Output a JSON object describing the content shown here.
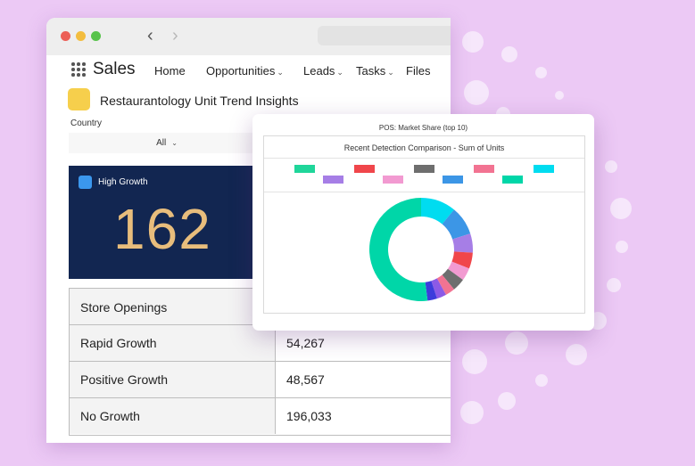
{
  "app": {
    "name": "Sales",
    "nav": [
      {
        "label": "Home",
        "dropdown": false
      },
      {
        "label": "Opportunities",
        "dropdown": true
      },
      {
        "label": "Leads",
        "dropdown": true
      },
      {
        "label": "Tasks",
        "dropdown": true
      },
      {
        "label": "Files",
        "dropdown": false
      }
    ]
  },
  "page": {
    "title": "Restaurantology Unit Trend Insights",
    "icon_color": "#f6cf4c"
  },
  "filter": {
    "label": "Country",
    "value": "All"
  },
  "metric": {
    "label": "High Growth",
    "value": "162"
  },
  "table": {
    "header": "Store Openings",
    "rows": [
      {
        "label": "Rapid Growth",
        "value": "54,267"
      },
      {
        "label": "Positive Growth",
        "value": "48,567"
      },
      {
        "label": "No Growth",
        "value": "196,033"
      }
    ]
  },
  "popup": {
    "title": "POS: Market Share (top 10)",
    "subtitle": "Recent Detection Comparison - Sum of Units"
  },
  "chart_data": {
    "type": "pie",
    "donut": true,
    "legend_position": "top",
    "series": [
      {
        "value": 11,
        "color": "#00dcf0"
      },
      {
        "value": 9,
        "color": "#3c96e6"
      },
      {
        "value": 6,
        "color": "#a67ee6"
      },
      {
        "value": 5,
        "color": "#f0464b"
      },
      {
        "value": 4,
        "color": "#f29ad1"
      },
      {
        "value": 4,
        "color": "#6e6e6e"
      },
      {
        "value": 3,
        "color": "#f27392"
      },
      {
        "value": 3,
        "color": "#8c5ae6"
      },
      {
        "value": 3,
        "color": "#3c3cdc"
      },
      {
        "value": 52,
        "color": "#00d6a8"
      }
    ],
    "legend_colors": [
      "#1fd69a",
      "#a67ee6",
      "#f0464b",
      "#f29ad1",
      "#6e6e6e",
      "#3c96e6",
      "#f27392",
      "#00d6a8",
      "#00dcf0"
    ]
  }
}
